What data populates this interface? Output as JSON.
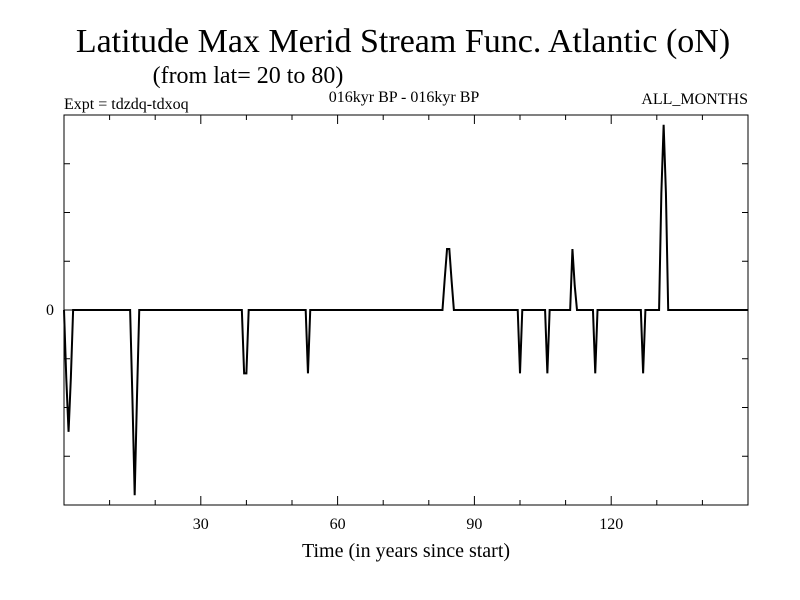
{
  "chart_data": {
    "type": "line",
    "title": "Latitude Max Merid Stream Func. Atlantic (oN)",
    "subtitle": "(from lat= 20 to 80)",
    "header_left": "Expt = tdzdq-tdxoq",
    "header_center": "016kyr BP - 016kyr BP",
    "header_right": "ALL_MONTHS",
    "xlabel": "Time (in years since start)",
    "ylabel": "",
    "xlim": [
      0,
      150
    ],
    "ylim": [
      -4,
      4
    ],
    "x_ticks": [
      30,
      60,
      90,
      120
    ],
    "x_tick_labels": [
      "30",
      "60",
      "90",
      "120"
    ],
    "y_ticks": [
      0
    ],
    "y_tick_labels": [
      "0"
    ],
    "grid": false,
    "series": [
      {
        "x": [
          0,
          0.5,
          1,
          1.5,
          2,
          2.5,
          3,
          3.5,
          4,
          14,
          14.5,
          15,
          15.5,
          16,
          16.5,
          17,
          17.5,
          38.5,
          39,
          39.5,
          40,
          40.5,
          41,
          52.5,
          53,
          53.5,
          54,
          54.5,
          82.5,
          83,
          83.5,
          84,
          84.5,
          85,
          85.5,
          86,
          99,
          99.5,
          100,
          100.5,
          101,
          105,
          105.5,
          106,
          106.5,
          107,
          110.5,
          111,
          111.5,
          112,
          112.5,
          113,
          115.5,
          116,
          116.5,
          117,
          117.5,
          126,
          126.5,
          127,
          127.5,
          128,
          130.5,
          131,
          131.5,
          132,
          132.5,
          133,
          133.5,
          134,
          148,
          150
        ],
        "y": [
          0,
          -1.4,
          -2.5,
          -1.4,
          0,
          0,
          0,
          0,
          0,
          0,
          0,
          -1.8,
          -3.8,
          -1.8,
          0,
          0,
          0,
          0,
          0,
          -1.3,
          -1.3,
          0,
          0,
          0,
          0,
          -1.3,
          0,
          0,
          0,
          0,
          0.65,
          1.25,
          1.25,
          0.6,
          0,
          0,
          0,
          0,
          -1.3,
          0,
          0,
          0,
          0,
          -1.3,
          0,
          0,
          0,
          0,
          1.25,
          0.5,
          0,
          0,
          0,
          0,
          -1.3,
          0,
          0,
          0,
          0,
          -1.3,
          0,
          0,
          0,
          2.4,
          3.8,
          2.4,
          0,
          0,
          0,
          0,
          0,
          0
        ]
      }
    ]
  }
}
